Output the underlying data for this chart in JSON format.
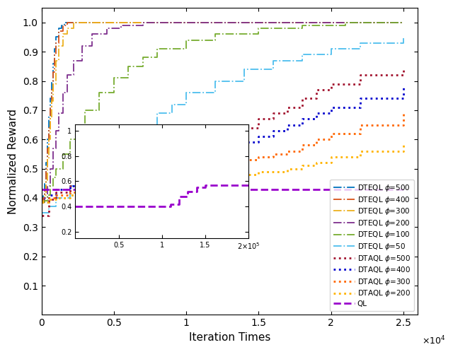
{
  "title": "",
  "xlabel": "Iteration Times",
  "ylabel": "Normalized Reward",
  "xlim": [
    0,
    26000
  ],
  "ylim": [
    0.0,
    1.05
  ],
  "xticks": [
    0,
    5000,
    10000,
    15000,
    20000,
    25000
  ],
  "xtick_labels": [
    "0",
    "0.5",
    "1",
    "1.5",
    "2",
    "2.5"
  ],
  "yticks": [
    0.1,
    0.2,
    0.3,
    0.4,
    0.5,
    0.6,
    0.7,
    0.8,
    0.9,
    1.0
  ],
  "background_color": "#ffffff",
  "series": [
    {
      "label": "DTEQL $\\phi$=500",
      "color": "#0072BD",
      "linestyle": "-.",
      "linewidth": 1.3,
      "x": [
        0,
        100,
        200,
        300,
        400,
        500,
        600,
        700,
        800,
        900,
        1000,
        1200,
        1400,
        1600,
        1800,
        2000,
        2500,
        3000,
        4000,
        5000,
        6000,
        8000,
        10000,
        15000,
        20000,
        25000
      ],
      "y": [
        0.385,
        0.41,
        0.45,
        0.52,
        0.6,
        0.68,
        0.74,
        0.8,
        0.86,
        0.91,
        0.95,
        0.98,
        0.99,
        1.0,
        1.0,
        1.0,
        1.0,
        1.0,
        1.0,
        1.0,
        1.0,
        1.0,
        1.0,
        1.0,
        1.0,
        1.0
      ]
    },
    {
      "label": "DTEQL $\\phi$=400",
      "color": "#D95319",
      "linestyle": "-.",
      "linewidth": 1.3,
      "x": [
        0,
        100,
        200,
        300,
        400,
        500,
        600,
        700,
        800,
        900,
        1000,
        1200,
        1500,
        1800,
        2200,
        2600,
        3000,
        4000,
        5000,
        6000,
        8000,
        10000,
        15000,
        20000,
        25000
      ],
      "y": [
        0.385,
        0.4,
        0.43,
        0.5,
        0.57,
        0.64,
        0.71,
        0.77,
        0.83,
        0.89,
        0.93,
        0.97,
        0.99,
        1.0,
        1.0,
        1.0,
        1.0,
        1.0,
        1.0,
        1.0,
        1.0,
        1.0,
        1.0,
        1.0,
        1.0
      ]
    },
    {
      "label": "DTEQL $\\phi$=300",
      "color": "#EDB120",
      "linestyle": "-.",
      "linewidth": 1.3,
      "x": [
        0,
        100,
        200,
        300,
        400,
        500,
        600,
        700,
        800,
        1000,
        1200,
        1500,
        1800,
        2200,
        2600,
        3200,
        4000,
        5000,
        6000,
        8000,
        10000,
        15000,
        20000,
        25000
      ],
      "y": [
        0.385,
        0.39,
        0.41,
        0.46,
        0.53,
        0.6,
        0.67,
        0.73,
        0.79,
        0.87,
        0.92,
        0.96,
        0.98,
        1.0,
        1.0,
        1.0,
        1.0,
        1.0,
        1.0,
        1.0,
        1.0,
        1.0,
        1.0,
        1.0
      ]
    },
    {
      "label": "DTEQL $\\phi$=200",
      "color": "#7E2F8E",
      "linestyle": "-.",
      "linewidth": 1.3,
      "x": [
        0,
        200,
        400,
        600,
        800,
        1000,
        1200,
        1500,
        1800,
        2200,
        2800,
        3500,
        4500,
        5500,
        7000,
        9000,
        12000,
        15000,
        20000,
        25000
      ],
      "y": [
        0.385,
        0.4,
        0.44,
        0.5,
        0.57,
        0.63,
        0.69,
        0.76,
        0.82,
        0.87,
        0.92,
        0.96,
        0.98,
        0.99,
        1.0,
        1.0,
        1.0,
        1.0,
        1.0,
        1.0
      ]
    },
    {
      "label": "DTEQL $\\phi$=100",
      "color": "#77AC30",
      "linestyle": "-.",
      "linewidth": 1.3,
      "x": [
        0,
        200,
        400,
        600,
        800,
        1000,
        1500,
        2000,
        2500,
        3000,
        4000,
        5000,
        6000,
        7000,
        8000,
        10000,
        12000,
        15000,
        18000,
        21000,
        25000
      ],
      "y": [
        0.385,
        0.39,
        0.41,
        0.44,
        0.47,
        0.5,
        0.55,
        0.6,
        0.65,
        0.7,
        0.76,
        0.81,
        0.85,
        0.88,
        0.91,
        0.94,
        0.96,
        0.98,
        0.99,
        1.0,
        1.0
      ]
    },
    {
      "label": "DTEQL $\\phi$=50",
      "color": "#4DBEEE",
      "linestyle": "-.",
      "linewidth": 1.3,
      "x": [
        0,
        500,
        1000,
        2000,
        3000,
        4000,
        5000,
        6000,
        7000,
        8000,
        9000,
        10000,
        12000,
        14000,
        16000,
        18000,
        20000,
        22000,
        25000
      ],
      "y": [
        0.35,
        0.37,
        0.4,
        0.44,
        0.48,
        0.52,
        0.57,
        0.61,
        0.65,
        0.69,
        0.72,
        0.76,
        0.8,
        0.84,
        0.87,
        0.89,
        0.91,
        0.93,
        0.95
      ]
    },
    {
      "label": "DTAQL $\\phi$=500",
      "color": "#A2142F",
      "linestyle": ":",
      "linewidth": 2.0,
      "x": [
        0,
        500,
        1000,
        2000,
        3000,
        4000,
        5000,
        6000,
        7000,
        8000,
        9000,
        10000,
        11000,
        12000,
        13000,
        14000,
        15000,
        16000,
        17000,
        18000,
        19000,
        20000,
        22000,
        25000
      ],
      "y": [
        0.34,
        0.395,
        0.42,
        0.44,
        0.46,
        0.48,
        0.49,
        0.5,
        0.52,
        0.53,
        0.55,
        0.56,
        0.58,
        0.6,
        0.62,
        0.64,
        0.67,
        0.69,
        0.71,
        0.74,
        0.77,
        0.79,
        0.82,
        0.84
      ]
    },
    {
      "label": "DTAQL $\\phi$=400",
      "color": "#0000CD",
      "linestyle": ":",
      "linewidth": 2.0,
      "x": [
        0,
        500,
        1000,
        2000,
        3000,
        4000,
        5000,
        6000,
        7000,
        8000,
        9000,
        10000,
        11000,
        12000,
        13000,
        14000,
        15000,
        16000,
        17000,
        18000,
        19000,
        20000,
        22000,
        25000
      ],
      "y": [
        0.385,
        0.41,
        0.43,
        0.44,
        0.45,
        0.46,
        0.47,
        0.48,
        0.49,
        0.5,
        0.51,
        0.52,
        0.54,
        0.55,
        0.57,
        0.59,
        0.61,
        0.63,
        0.65,
        0.67,
        0.69,
        0.71,
        0.74,
        0.78
      ]
    },
    {
      "label": "DTAQL $\\phi$=300",
      "color": "#FF6600",
      "linestyle": ":",
      "linewidth": 2.0,
      "x": [
        0,
        500,
        1000,
        2000,
        3000,
        4000,
        5000,
        6000,
        7000,
        8000,
        9000,
        10000,
        11000,
        12000,
        13000,
        14000,
        15000,
        16000,
        17000,
        18000,
        19000,
        20000,
        22000,
        25000
      ],
      "y": [
        0.385,
        0.4,
        0.41,
        0.42,
        0.43,
        0.44,
        0.45,
        0.46,
        0.47,
        0.47,
        0.48,
        0.49,
        0.5,
        0.51,
        0.52,
        0.53,
        0.54,
        0.55,
        0.56,
        0.58,
        0.6,
        0.62,
        0.65,
        0.69
      ]
    },
    {
      "label": "DTAQL $\\phi$=200",
      "color": "#FFB300",
      "linestyle": ":",
      "linewidth": 2.0,
      "x": [
        0,
        500,
        1000,
        2000,
        3000,
        4000,
        5000,
        6000,
        7000,
        8000,
        9000,
        10000,
        11000,
        12000,
        13000,
        14000,
        15000,
        16000,
        17000,
        18000,
        19000,
        20000,
        22000,
        25000
      ],
      "y": [
        0.385,
        0.395,
        0.4,
        0.41,
        0.42,
        0.42,
        0.43,
        0.43,
        0.44,
        0.44,
        0.45,
        0.45,
        0.46,
        0.47,
        0.47,
        0.48,
        0.49,
        0.49,
        0.5,
        0.51,
        0.52,
        0.54,
        0.56,
        0.58
      ]
    },
    {
      "label": "QL",
      "color": "#9900CC",
      "linestyle": "--",
      "linewidth": 2.0,
      "x": [
        0,
        5000,
        10000,
        15000,
        20000,
        25000
      ],
      "y": [
        0.43,
        0.43,
        0.43,
        0.43,
        0.43,
        0.43
      ]
    }
  ],
  "inset_series_ql": {
    "color": "#9900CC",
    "linestyle": "--",
    "linewidth": 2.0,
    "x": [
      0,
      10000,
      30000,
      50000,
      70000,
      90000,
      100000,
      105000,
      110000,
      120000,
      130000,
      140000,
      150000,
      160000,
      180000,
      200000
    ],
    "y": [
      0.4,
      0.4,
      0.4,
      0.4,
      0.4,
      0.4,
      0.4,
      0.4,
      0.42,
      0.48,
      0.52,
      0.55,
      0.57,
      0.57,
      0.57,
      0.57
    ]
  }
}
